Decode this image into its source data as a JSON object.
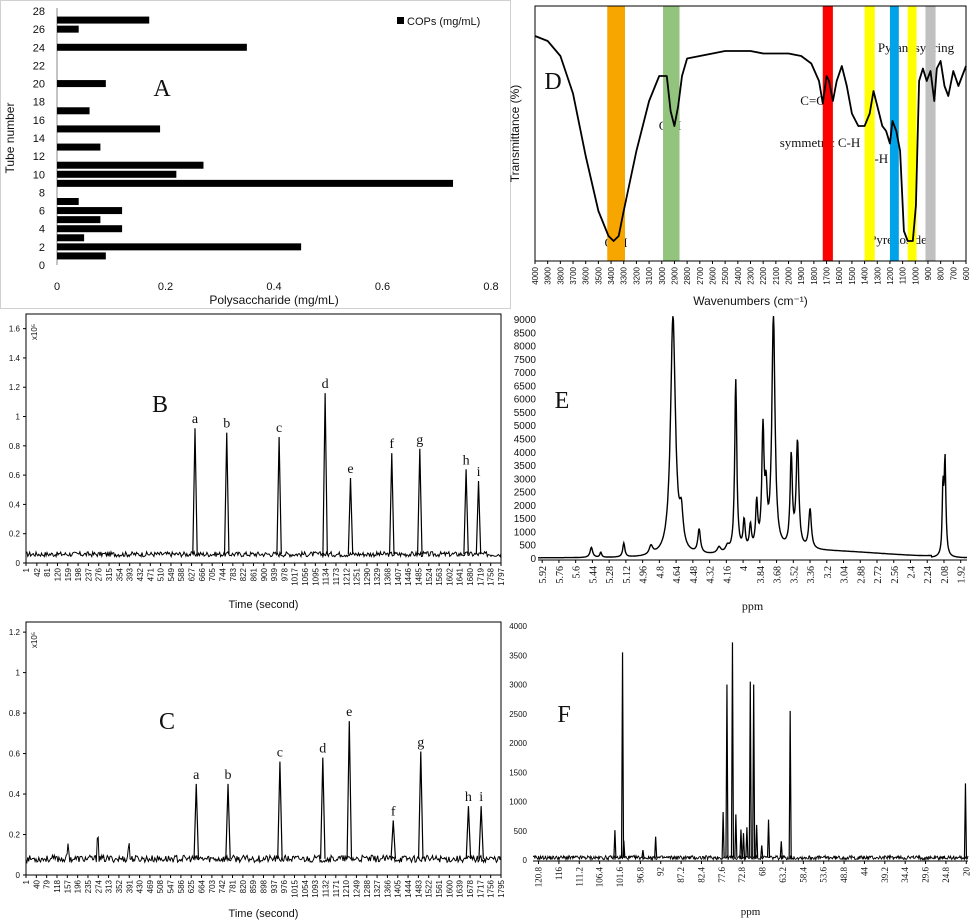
{
  "chart_data": [
    {
      "panel": "A",
      "type": "bar",
      "orientation": "horizontal",
      "panel_label": "A",
      "xlabel": "Polysaccharide (mg/mL)",
      "ylabel": "Tube number",
      "xlim": [
        0,
        0.8
      ],
      "xticks": [
        "0",
        "0.2",
        "0.4",
        "0.6",
        "0.8"
      ],
      "ylim": [
        0,
        28
      ],
      "yticks": [
        "0",
        "2",
        "4",
        "6",
        "8",
        "10",
        "12",
        "14",
        "16",
        "18",
        "20",
        "22",
        "24",
        "26",
        "28"
      ],
      "legend": "COPs (mg/mL)",
      "legend_position": "top-right",
      "color": "#000000",
      "bars": [
        {
          "tube": 1,
          "value": 0.09
        },
        {
          "tube": 2,
          "value": 0.45
        },
        {
          "tube": 3,
          "value": 0.05
        },
        {
          "tube": 4,
          "value": 0.12
        },
        {
          "tube": 5,
          "value": 0.08
        },
        {
          "tube": 6,
          "value": 0.12
        },
        {
          "tube": 7,
          "value": 0.04
        },
        {
          "tube": 9,
          "value": 0.73
        },
        {
          "tube": 10,
          "value": 0.22
        },
        {
          "tube": 11,
          "value": 0.27
        },
        {
          "tube": 13,
          "value": 0.08
        },
        {
          "tube": 15,
          "value": 0.19
        },
        {
          "tube": 17,
          "value": 0.06
        },
        {
          "tube": 20,
          "value": 0.09
        },
        {
          "tube": 24,
          "value": 0.35
        },
        {
          "tube": 26,
          "value": 0.04
        },
        {
          "tube": 27,
          "value": 0.17
        }
      ]
    },
    {
      "panel": "B",
      "type": "line",
      "panel_label": "B",
      "xlabel": "Time (second)",
      "scale_label": "x10⁵",
      "ylim": [
        0,
        1.7
      ],
      "yticks": [
        "0",
        "0.2",
        "0.4",
        "0.6",
        "0.8",
        "1",
        "1.2",
        "1.4",
        "1.6"
      ],
      "xticks": [
        "1",
        "42",
        "81",
        "120",
        "159",
        "198",
        "237",
        "276",
        "315",
        "354",
        "393",
        "432",
        "471",
        "510",
        "549",
        "588",
        "627",
        "666",
        "705",
        "744",
        "783",
        "822",
        "861",
        "900",
        "939",
        "978",
        "1017",
        "1056",
        "1095",
        "1134",
        "1173",
        "1212",
        "1251",
        "1290",
        "1329",
        "1368",
        "1407",
        "1446",
        "1485",
        "1524",
        "1563",
        "1602",
        "1641",
        "1680",
        "1719",
        "1758",
        "1797"
      ],
      "xlim": [
        1,
        1797
      ],
      "baseline": 0.06,
      "peaks": [
        {
          "label": "a",
          "x": 640,
          "y": 0.92
        },
        {
          "label": "b",
          "x": 760,
          "y": 0.89
        },
        {
          "label": "c",
          "x": 958,
          "y": 0.86
        },
        {
          "label": "d",
          "x": 1132,
          "y": 1.16
        },
        {
          "label": "e",
          "x": 1228,
          "y": 0.58
        },
        {
          "label": "f",
          "x": 1384,
          "y": 0.75
        },
        {
          "label": "g",
          "x": 1490,
          "y": 0.78
        },
        {
          "label": "h",
          "x": 1665,
          "y": 0.64
        },
        {
          "label": "i",
          "x": 1712,
          "y": 0.56
        }
      ]
    },
    {
      "panel": "C",
      "type": "line",
      "panel_label": "C",
      "xlabel": "Time (second)",
      "scale_label": "x10⁵",
      "ylim": [
        0,
        1.25
      ],
      "yticks": [
        "0",
        "0.2",
        "0.4",
        "0.6",
        "0.8",
        "1",
        "1.2"
      ],
      "xticks": [
        "1",
        "40",
        "79",
        "118",
        "157",
        "196",
        "235",
        "274",
        "313",
        "352",
        "391",
        "430",
        "469",
        "508",
        "547",
        "586",
        "625",
        "664",
        "703",
        "742",
        "781",
        "820",
        "859",
        "898",
        "937",
        "976",
        "1015",
        "1054",
        "1093",
        "1132",
        "1171",
        "1210",
        "1249",
        "1288",
        "1327",
        "1366",
        "1405",
        "1444",
        "1483",
        "1522",
        "1561",
        "1600",
        "1639",
        "1678",
        "1717",
        "1756",
        "1795"
      ],
      "xlim": [
        1,
        1795
      ],
      "baseline": 0.08,
      "peaks": [
        {
          "label": "a",
          "x": 644,
          "y": 0.45
        },
        {
          "label": "b",
          "x": 764,
          "y": 0.45
        },
        {
          "label": "c",
          "x": 960,
          "y": 0.56
        },
        {
          "label": "d",
          "x": 1122,
          "y": 0.58
        },
        {
          "label": "e",
          "x": 1222,
          "y": 0.76
        },
        {
          "label": "f",
          "x": 1388,
          "y": 0.27
        },
        {
          "label": "g",
          "x": 1492,
          "y": 0.61
        },
        {
          "label": "h",
          "x": 1672,
          "y": 0.34
        },
        {
          "label": "i",
          "x": 1720,
          "y": 0.34
        }
      ],
      "minor_peaks": [
        {
          "x": 160,
          "y": 0.16
        },
        {
          "x": 272,
          "y": 0.21
        },
        {
          "x": 390,
          "y": 0.17
        }
      ]
    },
    {
      "panel": "D",
      "type": "line",
      "panel_label": "D",
      "xlabel": "Wavenumbers (cm⁻¹)",
      "ylabel": "Transmittance (%)",
      "xlim": [
        4000,
        600
      ],
      "xticks": [
        "4000",
        "3900",
        "3800",
        "3700",
        "3600",
        "3500",
        "3400",
        "3300",
        "3200",
        "3100",
        "3000",
        "2900",
        "2800",
        "2700",
        "2600",
        "2500",
        "2400",
        "2300",
        "2200",
        "2100",
        "2000",
        "1900",
        "1800",
        "1700",
        "1600",
        "1500",
        "1400",
        "1300",
        "1200",
        "1100",
        "1000",
        "900",
        "800",
        "700",
        "600"
      ],
      "bands": [
        {
          "from": 3430,
          "to": 3290,
          "color": "#f7a600"
        },
        {
          "from": 2990,
          "to": 2860,
          "color": "#93c47d"
        },
        {
          "from": 1730,
          "to": 1650,
          "color": "#ff0000"
        },
        {
          "from": 1400,
          "to": 1320,
          "color": "#ffff00"
        },
        {
          "from": 1200,
          "to": 1130,
          "color": "#00a2e8"
        },
        {
          "from": 1060,
          "to": 990,
          "color": "#ffff00"
        },
        {
          "from": 920,
          "to": 840,
          "color": "#c0c0c0"
        }
      ],
      "annotations": [
        "O-H",
        "C-H",
        "C=O",
        "symmetric C-H",
        "C-H",
        "Pyrenoside",
        "Pyranosyl ring"
      ],
      "spectrum": [
        [
          4000,
          88
        ],
        [
          3900,
          86
        ],
        [
          3800,
          80
        ],
        [
          3700,
          65
        ],
        [
          3600,
          40
        ],
        [
          3500,
          18
        ],
        [
          3420,
          8
        ],
        [
          3380,
          6
        ],
        [
          3340,
          8
        ],
        [
          3300,
          18
        ],
        [
          3200,
          42
        ],
        [
          3100,
          62
        ],
        [
          3020,
          72
        ],
        [
          2960,
          72
        ],
        [
          2930,
          58
        ],
        [
          2900,
          52
        ],
        [
          2870,
          60
        ],
        [
          2840,
          72
        ],
        [
          2800,
          79
        ],
        [
          2700,
          80
        ],
        [
          2600,
          81
        ],
        [
          2500,
          82
        ],
        [
          2400,
          82
        ],
        [
          2300,
          82
        ],
        [
          2200,
          81
        ],
        [
          2100,
          81
        ],
        [
          2000,
          81
        ],
        [
          1900,
          80
        ],
        [
          1820,
          77
        ],
        [
          1760,
          70
        ],
        [
          1730,
          61
        ],
        [
          1700,
          72
        ],
        [
          1680,
          70
        ],
        [
          1650,
          62
        ],
        [
          1620,
          70
        ],
        [
          1580,
          76
        ],
        [
          1540,
          68
        ],
        [
          1500,
          57
        ],
        [
          1450,
          52
        ],
        [
          1400,
          52
        ],
        [
          1360,
          57
        ],
        [
          1330,
          66
        ],
        [
          1300,
          60
        ],
        [
          1260,
          52
        ],
        [
          1230,
          50
        ],
        [
          1200,
          45
        ],
        [
          1180,
          54
        ],
        [
          1150,
          50
        ],
        [
          1120,
          42
        ],
        [
          1090,
          10
        ],
        [
          1060,
          6
        ],
        [
          1020,
          6
        ],
        [
          995,
          20
        ],
        [
          970,
          70
        ],
        [
          940,
          75
        ],
        [
          910,
          70
        ],
        [
          880,
          74
        ],
        [
          850,
          62
        ],
        [
          830,
          75
        ],
        [
          800,
          78
        ],
        [
          770,
          68
        ],
        [
          740,
          64
        ],
        [
          700,
          74
        ],
        [
          660,
          68
        ],
        [
          630,
          72
        ],
        [
          600,
          76
        ]
      ]
    },
    {
      "panel": "E",
      "type": "line",
      "panel_label": "E",
      "xlabel": "ppm",
      "xlim": [
        5.96,
        1.86
      ],
      "ylim": [
        0,
        9000
      ],
      "yticks": [
        "0",
        "500",
        "1000",
        "1500",
        "2000",
        "2500",
        "3000",
        "3500",
        "4000",
        "4500",
        "5000",
        "5500",
        "6000",
        "6500",
        "7000",
        "7500",
        "8000",
        "8500",
        "9000"
      ],
      "xticks": [
        "5.92",
        "5.76",
        "5.6",
        "5.44",
        "5.28",
        "5.12",
        "4.96",
        "4.8",
        "4.64",
        "4.48",
        "4.32",
        "4.16",
        "4",
        "3.84",
        "3.68",
        "3.52",
        "3.36",
        "3.2",
        "3.04",
        "2.88",
        "2.72",
        "2.56",
        "2.4",
        "2.24",
        "2.08",
        "1.92"
      ],
      "peaks": [
        {
          "x": 5.45,
          "y": 380,
          "w": 0.015
        },
        {
          "x": 5.36,
          "y": 190,
          "w": 0.01
        },
        {
          "x": 5.14,
          "y": 520,
          "w": 0.012
        },
        {
          "x": 4.88,
          "y": 320,
          "w": 0.02
        },
        {
          "x": 4.67,
          "y": 9000,
          "w": 0.028
        },
        {
          "x": 4.59,
          "y": 1200,
          "w": 0.02
        },
        {
          "x": 4.42,
          "y": 900,
          "w": 0.015
        },
        {
          "x": 4.23,
          "y": 230,
          "w": 0.02
        },
        {
          "x": 4.15,
          "y": 220,
          "w": 0.02
        },
        {
          "x": 4.07,
          "y": 6500,
          "w": 0.012
        },
        {
          "x": 3.99,
          "y": 1100,
          "w": 0.012
        },
        {
          "x": 3.93,
          "y": 900,
          "w": 0.012
        },
        {
          "x": 3.87,
          "y": 1700,
          "w": 0.012
        },
        {
          "x": 3.81,
          "y": 4400,
          "w": 0.013
        },
        {
          "x": 3.78,
          "y": 1800,
          "w": 0.012
        },
        {
          "x": 3.71,
          "y": 8800,
          "w": 0.018
        },
        {
          "x": 3.54,
          "y": 3400,
          "w": 0.013
        },
        {
          "x": 3.48,
          "y": 4000,
          "w": 0.015
        },
        {
          "x": 3.36,
          "y": 1500,
          "w": 0.015
        },
        {
          "x": 2.09,
          "y": 2400,
          "w": 0.008
        },
        {
          "x": 2.07,
          "y": 3600,
          "w": 0.01
        }
      ]
    },
    {
      "panel": "F",
      "type": "line",
      "panel_label": "F",
      "xlabel": "ppm",
      "xlim": [
        122.1,
        19.6
      ],
      "ylim": [
        0,
        4000
      ],
      "yticks": [
        "0",
        "500",
        "1000",
        "1500",
        "2000",
        "2500",
        "3000",
        "3500",
        "4000"
      ],
      "xticks": [
        "120.8",
        "116",
        "111.2",
        "106.4",
        "101.6",
        "96.8",
        "92",
        "87.2",
        "82.4",
        "77.6",
        "72.8",
        "68",
        "63.2",
        "58.4",
        "53.6",
        "48.8",
        "44",
        "39.2",
        "34.4",
        "29.6",
        "24.8",
        "20"
      ],
      "baseline": 40,
      "peaks": [
        {
          "x": 101.0,
          "y": 3550
        },
        {
          "x": 102.8,
          "y": 510
        },
        {
          "x": 100.7,
          "y": 330
        },
        {
          "x": 96.2,
          "y": 170
        },
        {
          "x": 93.2,
          "y": 400
        },
        {
          "x": 77.3,
          "y": 820
        },
        {
          "x": 76.4,
          "y": 3000
        },
        {
          "x": 75.1,
          "y": 3720
        },
        {
          "x": 74.3,
          "y": 780
        },
        {
          "x": 73.1,
          "y": 520
        },
        {
          "x": 72.5,
          "y": 460
        },
        {
          "x": 71.7,
          "y": 560
        },
        {
          "x": 70.9,
          "y": 3050
        },
        {
          "x": 70.1,
          "y": 3000
        },
        {
          "x": 69.4,
          "y": 600
        },
        {
          "x": 68.2,
          "y": 250
        },
        {
          "x": 66.6,
          "y": 690
        },
        {
          "x": 63.6,
          "y": 320
        },
        {
          "x": 61.5,
          "y": 2550
        },
        {
          "x": 20.2,
          "y": 1310
        }
      ]
    }
  ]
}
